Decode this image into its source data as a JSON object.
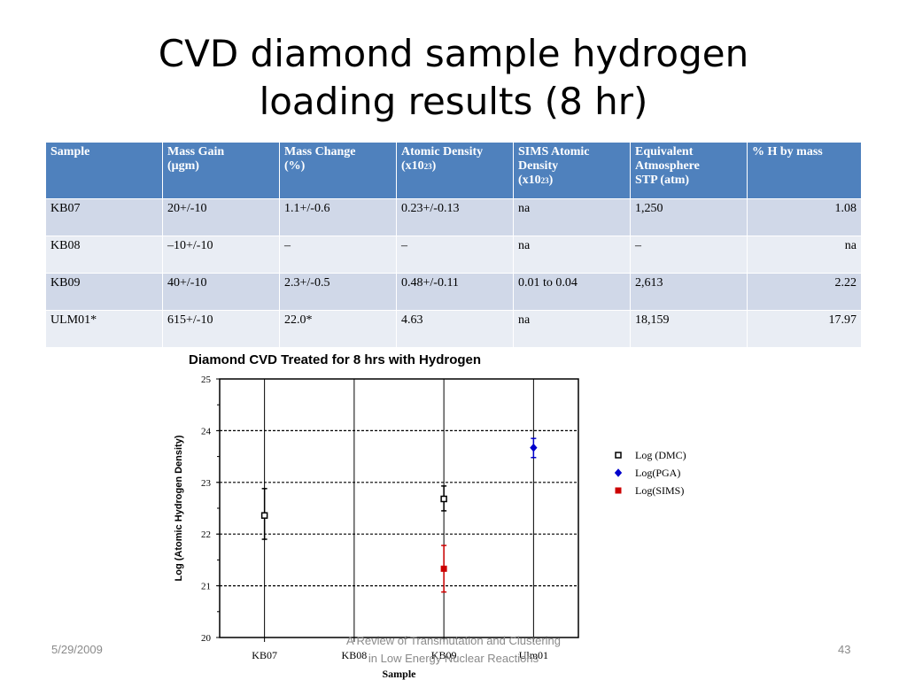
{
  "slide": {
    "title_line1": "CVD diamond sample hydrogen",
    "title_line2": "loading results (8 hr)"
  },
  "table": {
    "headers": [
      {
        "main": "Sample"
      },
      {
        "main": "Mass Gain",
        "line2": "(μgm)"
      },
      {
        "main": "Mass Change",
        "line2": "(%)"
      },
      {
        "main": "Atomic Density",
        "line2": "(x10",
        "sub": "23",
        "end": ")"
      },
      {
        "main": "SIMS Atomic",
        "line2": "Density",
        "line3": "(x10",
        "sub": "23",
        "end": ")"
      },
      {
        "main": "Equivalent",
        "line2": "Atmosphere",
        "line3": "STP (atm)"
      },
      {
        "main": "% H by mass"
      }
    ],
    "rows": [
      [
        "KB07",
        "20+/-10",
        "1.1+/-0.6",
        "0.23+/-0.13",
        "na",
        "1,250",
        "1.08"
      ],
      [
        "KB08",
        "–10+/-10",
        "–",
        "–",
        "na",
        "–",
        "na"
      ],
      [
        "KB09",
        "40+/-10",
        "2.3+/-0.5",
        "0.48+/-0.11",
        "0.01 to 0.04",
        "2,613",
        "2.22"
      ],
      [
        "ULM01*",
        "615+/-10",
        "22.0*",
        "4.63",
        "na",
        "18,159",
        "17.97"
      ]
    ]
  },
  "chart_data": {
    "type": "scatter",
    "title": "Diamond CVD Treated for 8 hrs with Hydrogen",
    "xlabel": "Sample",
    "ylabel": "Log (Atomic Hydrogen Density)",
    "categories": [
      "KB07",
      "KB08",
      "KB09",
      "Ulm01"
    ],
    "ylim": [
      20,
      25
    ],
    "yticks": [
      "20",
      "21",
      "22",
      "23",
      "24",
      "25"
    ],
    "grid": true,
    "legend_position": "right",
    "series": [
      {
        "name": "Log (DMC)",
        "color": "#000000",
        "marker": "open-square",
        "points": [
          {
            "category": "KB07",
            "y": 22.36,
            "err_low": 21.9,
            "err_high": 22.88
          },
          {
            "category": "KB09",
            "y": 22.68,
            "err_low": 22.45,
            "err_high": 22.93
          }
        ]
      },
      {
        "name": "Log(PGA)",
        "color": "#0000cc",
        "marker": "diamond",
        "points": [
          {
            "category": "Ulm01",
            "y": 23.67,
            "err_low": 23.48,
            "err_high": 23.85
          }
        ]
      },
      {
        "name": "Log(SIMS)",
        "color": "#cc0000",
        "marker": "filled-square",
        "points": [
          {
            "category": "KB09",
            "y": 21.33,
            "err_low": 20.88,
            "err_high": 21.78
          }
        ]
      }
    ]
  },
  "footer": {
    "date": "5/29/2009",
    "center_line1": "A Review of Transmutation and Clustering",
    "center_line2": "in Low Energy Nuclear Reactions",
    "page": "43"
  }
}
